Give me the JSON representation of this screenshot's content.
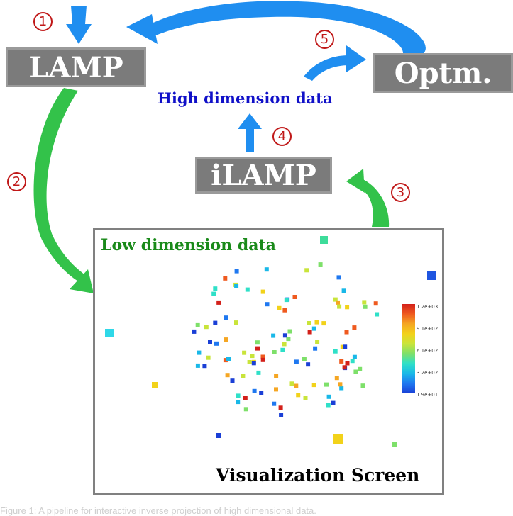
{
  "boxes": {
    "lamp": "LAMP",
    "optm": "Optm.",
    "ilamp": "iLAMP"
  },
  "labels": {
    "high_dimension": "High dimension data",
    "low_dimension": "Low dimension data",
    "visualization_screen": "Visualization Screen"
  },
  "steps": [
    "1",
    "2",
    "3",
    "4",
    "5"
  ],
  "colorbar_ticks": [
    "1.2e+03",
    "9.1e+02",
    "6.1e+02",
    "3.2e+02",
    "1.9e+01"
  ],
  "caption": "Figure 1: A pipeline for interactive inverse projection of high dimensional data.",
  "colors": {
    "blue_arrow": "#1f8ef0",
    "green_arrow": "#33c24a",
    "box": "#7b7b7b",
    "badge": "#c01818"
  }
}
